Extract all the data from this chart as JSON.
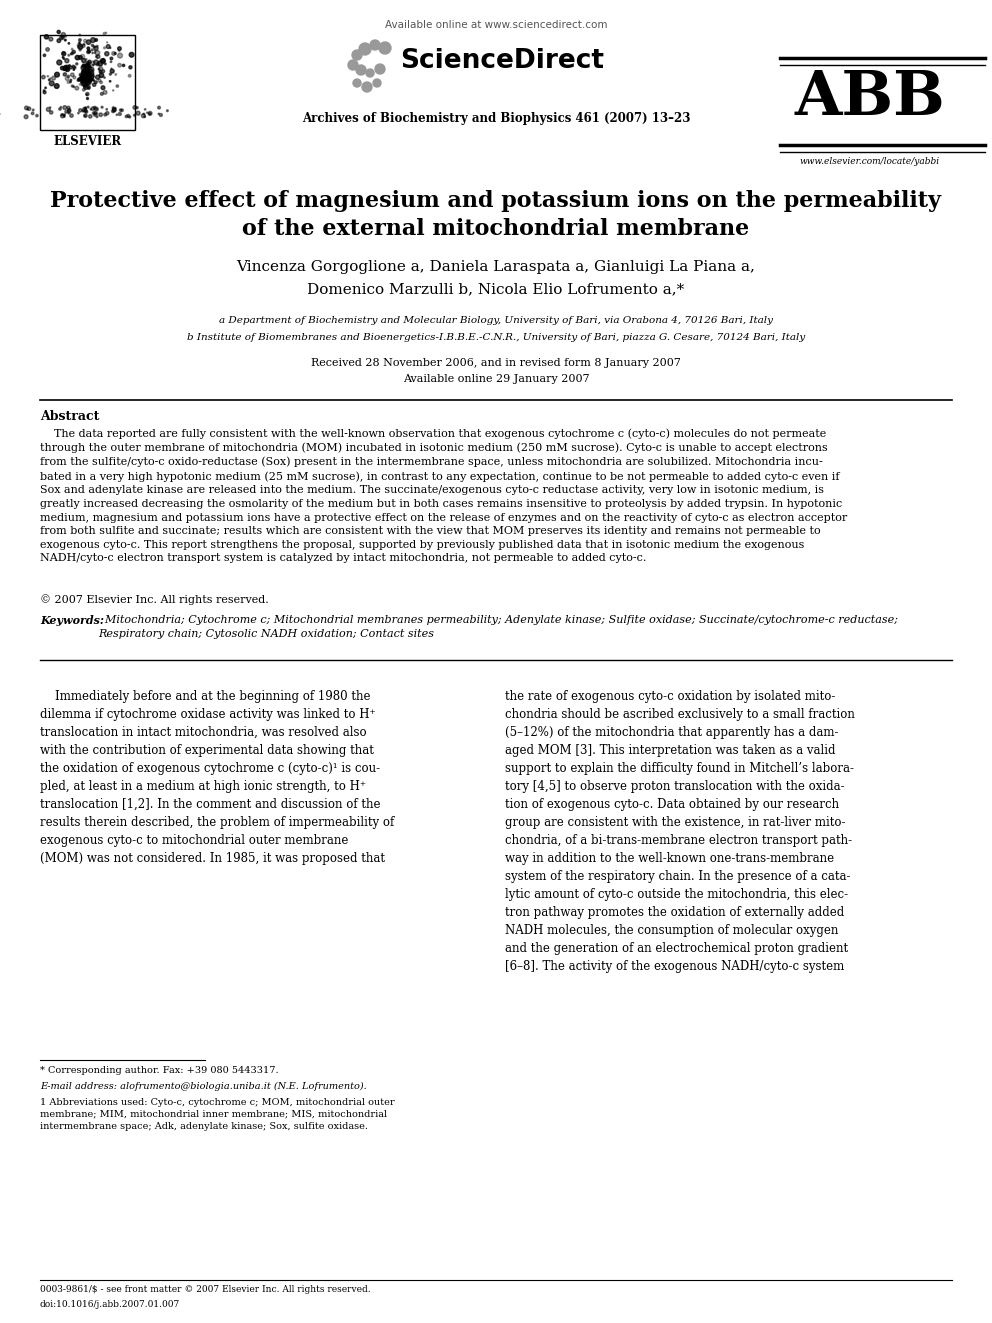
{
  "bg_color": "#ffffff",
  "header_available_online": "Available online at www.sciencedirect.com",
  "header_journal": "Archives of Biochemistry and Biophysics 461 (2007) 13–23",
  "header_url": "www.elsevier.com/locate/yabbi",
  "title_line1": "Protective effect of magnesium and potassium ions on the permeability",
  "title_line2": "of the external mitochondrial membrane",
  "authors_line1": "Vincenza Gorgoglione a, Daniela Laraspata a, Gianluigi La Piana a,",
  "authors_line2": "Domenico Marzulli b, Nicola Elio Lofrumento a,*",
  "affil_a": "a Department of Biochemistry and Molecular Biology, University of Bari, via Orabona 4, 70126 Bari, Italy",
  "affil_b": "b Institute of Biomembranes and Bioenergetics-I.B.B.E.-C.N.R., University of Bari, piazza G. Cesare, 70124 Bari, Italy",
  "received": "Received 28 November 2006, and in revised form 8 January 2007",
  "available": "Available online 29 January 2007",
  "abstract_title": "Abstract",
  "copyright": "© 2007 Elsevier Inc. All rights reserved.",
  "keywords_label": "Keywords:",
  "footnote_star": "* Corresponding author. Fax: +39 080 5443317.",
  "footnote_email": "E-mail address: alofrumento@biologia.uniba.it (N.E. Lofrumento).",
  "issn": "0003-9861/$ - see front matter © 2007 Elsevier Inc. All rights reserved.",
  "doi": "doi:10.1016/j.abb.2007.01.007"
}
